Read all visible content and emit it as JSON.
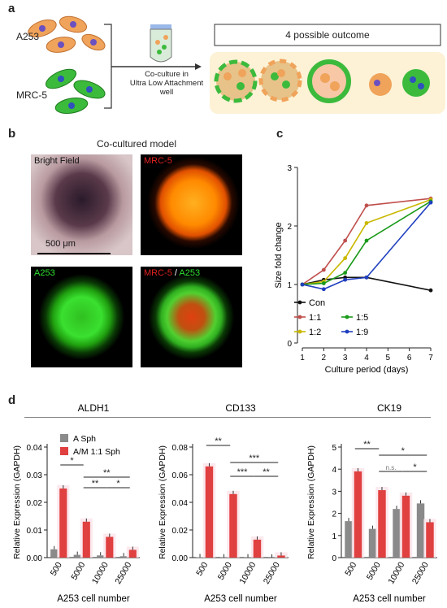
{
  "panel_a": {
    "label": "a",
    "cell_a253": "A253",
    "cell_mrc5": "MRC-5",
    "arrow_caption_1": "Co-culture in",
    "arrow_caption_2": "Ultra Low Attachment",
    "arrow_caption_3": "well",
    "outcome_title": "4 possible outcome"
  },
  "panel_b": {
    "label": "b",
    "title": "Co-cultured model",
    "bright_field": "Bright Field",
    "mrc5": "MRC-5",
    "a253": "A253",
    "merge_mrc5": "MRC-5",
    "merge_sep": " / ",
    "merge_a253": "A253",
    "scale_bar": "500 μm"
  },
  "panel_c": {
    "label": "c",
    "chart_data": {
      "type": "line",
      "xlabel": "Culture period (days)",
      "ylabel": "Size fold change",
      "x_ticks": [
        1,
        2,
        3,
        4,
        5,
        6,
        7
      ],
      "y_ticks": [
        0,
        1,
        2,
        3
      ],
      "xlim": [
        1,
        7
      ],
      "ylim": [
        0,
        3
      ],
      "series": [
        {
          "name": "Con",
          "color": "#111111",
          "x": [
            1,
            2,
            3,
            4,
            7
          ],
          "y": [
            1.0,
            1.08,
            1.12,
            1.12,
            0.9
          ]
        },
        {
          "name": "1:1",
          "color": "#c0504d",
          "x": [
            1,
            2,
            3,
            4,
            7
          ],
          "y": [
            1.0,
            1.25,
            1.75,
            2.35,
            2.47
          ]
        },
        {
          "name": "1:2",
          "color": "#c9b800",
          "x": [
            1,
            2,
            3,
            4,
            7
          ],
          "y": [
            1.0,
            1.05,
            1.45,
            2.05,
            2.45
          ]
        },
        {
          "name": "1:5",
          "color": "#1a9a1a",
          "x": [
            1,
            2,
            3,
            4,
            7
          ],
          "y": [
            1.0,
            1.02,
            1.2,
            1.75,
            2.42
          ]
        },
        {
          "name": "1:9",
          "color": "#1f3fbf",
          "x": [
            1,
            2,
            3,
            4,
            7
          ],
          "y": [
            1.0,
            0.92,
            1.08,
            1.12,
            2.4
          ]
        }
      ]
    }
  },
  "panel_d": {
    "label": "d",
    "xlabel": "A253 cell number",
    "ylabel": "Relative Expression (GAPDH)",
    "legend": [
      {
        "name": "A Sph",
        "color": "#8a8a8a"
      },
      {
        "name": "A/M 1:1 Sph",
        "color": "#e04040"
      }
    ],
    "chart_data": [
      {
        "type": "bar",
        "title": "ALDH1",
        "categories": [
          "500",
          "5000",
          "10000",
          "25000"
        ],
        "series": [
          {
            "name": "A Sph",
            "values": [
              0.003,
              0.001,
              0.0008,
              0.0005
            ]
          },
          {
            "name": "A/M 1:1 Sph",
            "values": [
              0.025,
              0.013,
              0.0075,
              0.0028
            ]
          }
        ],
        "ylim": [
          0,
          0.04
        ],
        "y_ticks": [
          "0.00",
          "0.01",
          "0.02",
          "0.03",
          "0.04"
        ],
        "significance": [
          {
            "pair": [
              0,
              1
            ],
            "label": "*"
          },
          {
            "pair": [
              1,
              2
            ],
            "label": "**"
          },
          {
            "pair": [
              2,
              3
            ],
            "label": "*"
          },
          {
            "pair": [
              1,
              3
            ],
            "label": "**"
          }
        ]
      },
      {
        "type": "bar",
        "title": "CD133",
        "categories": [
          "500",
          "5000",
          "10000",
          "25000"
        ],
        "series": [
          {
            "name": "A Sph",
            "values": [
              0.0003,
              0.0002,
              0.0002,
              0.0001
            ]
          },
          {
            "name": "A/M 1:1 Sph",
            "values": [
              0.066,
              0.046,
              0.013,
              0.0015
            ]
          }
        ],
        "ylim": [
          0,
          0.08
        ],
        "y_ticks": [
          "0.00",
          "0.02",
          "0.04",
          "0.06",
          "0.08"
        ],
        "significance": [
          {
            "pair": [
              0,
              1
            ],
            "label": "**"
          },
          {
            "pair": [
              1,
              2
            ],
            "label": "***"
          },
          {
            "pair": [
              2,
              3
            ],
            "label": "**"
          },
          {
            "pair": [
              1,
              3
            ],
            "label": "***"
          }
        ]
      },
      {
        "type": "bar",
        "title": "CK19",
        "categories": [
          "500",
          "5000",
          "10000",
          "25000"
        ],
        "series": [
          {
            "name": "A Sph",
            "values": [
              1.65,
              1.3,
              2.2,
              2.45
            ]
          },
          {
            "name": "A/M 1:1 Sph",
            "values": [
              3.9,
              3.05,
              2.8,
              1.6
            ]
          }
        ],
        "ylim": [
          0,
          5
        ],
        "y_ticks": [
          "0",
          "1",
          "2",
          "3",
          "4",
          "5"
        ],
        "significance": [
          {
            "pair": [
              0,
              1
            ],
            "label": "**"
          },
          {
            "pair": [
              1,
              2
            ],
            "label": "n.s."
          },
          {
            "pair": [
              2,
              3
            ],
            "label": "*"
          },
          {
            "pair": [
              1,
              3
            ],
            "label": "*"
          }
        ]
      }
    ]
  }
}
